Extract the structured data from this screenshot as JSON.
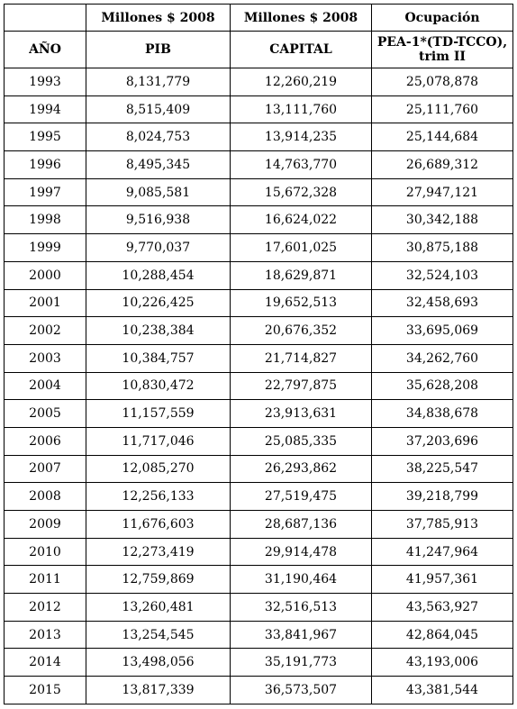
{
  "header_units": [
    "",
    "Millones $ 2008",
    "Millones $ 2008",
    "Ocupación"
  ],
  "header_names": {
    "year": "AÑO",
    "pib": "PIB",
    "capital": "CAPITAL",
    "ocupacion_line1": "PEA-1*(TD-TCCO),",
    "ocupacion_line2": "trim II"
  },
  "rows": [
    [
      "1993",
      "8,131,779",
      "12,260,219",
      "25,078,878"
    ],
    [
      "1994",
      "8,515,409",
      "13,111,760",
      "25,111,760"
    ],
    [
      "1995",
      "8,024,753",
      "13,914,235",
      "25,144,684"
    ],
    [
      "1996",
      "8,495,345",
      "14,763,770",
      "26,689,312"
    ],
    [
      "1997",
      "9,085,581",
      "15,672,328",
      "27,947,121"
    ],
    [
      "1998",
      "9,516,938",
      "16,624,022",
      "30,342,188"
    ],
    [
      "1999",
      "9,770,037",
      "17,601,025",
      "30,875,188"
    ],
    [
      "2000",
      "10,288,454",
      "18,629,871",
      "32,524,103"
    ],
    [
      "2001",
      "10,226,425",
      "19,652,513",
      "32,458,693"
    ],
    [
      "2002",
      "10,238,384",
      "20,676,352",
      "33,695,069"
    ],
    [
      "2003",
      "10,384,757",
      "21,714,827",
      "34,262,760"
    ],
    [
      "2004",
      "10,830,472",
      "22,797,875",
      "35,628,208"
    ],
    [
      "2005",
      "11,157,559",
      "23,913,631",
      "34,838,678"
    ],
    [
      "2006",
      "11,717,046",
      "25,085,335",
      "37,203,696"
    ],
    [
      "2007",
      "12,085,270",
      "26,293,862",
      "38,225,547"
    ],
    [
      "2008",
      "12,256,133",
      "27,519,475",
      "39,218,799"
    ],
    [
      "2009",
      "11,676,603",
      "28,687,136",
      "37,785,913"
    ],
    [
      "2010",
      "12,273,419",
      "29,914,478",
      "41,247,964"
    ],
    [
      "2011",
      "12,759,869",
      "31,190,464",
      "41,957,361"
    ],
    [
      "2012",
      "13,260,481",
      "32,516,513",
      "43,563,927"
    ],
    [
      "2013",
      "13,254,545",
      "33,841,967",
      "42,864,045"
    ],
    [
      "2014",
      "13,498,056",
      "35,191,773",
      "43,193,006"
    ],
    [
      "2015",
      "13,817,339",
      "36,573,507",
      "43,381,544"
    ]
  ]
}
